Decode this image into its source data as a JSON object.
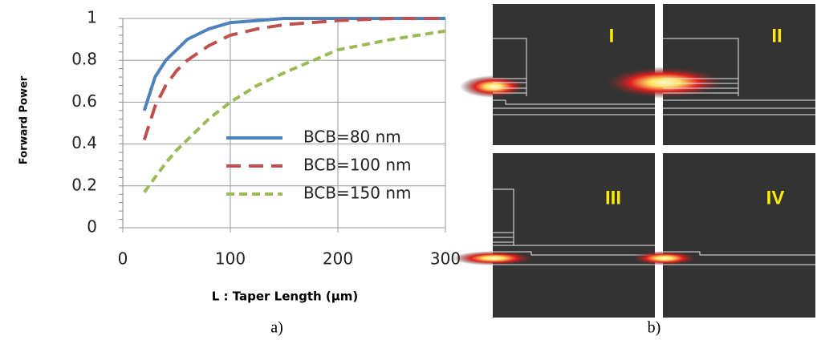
{
  "chart_data": {
    "type": "line",
    "y_label": "Forward Power",
    "x_label": "L : Taper Length (µm)",
    "x": [
      20,
      30,
      40,
      50,
      60,
      80,
      100,
      125,
      150,
      200,
      250,
      300
    ],
    "series": [
      {
        "name": "BCB=80 nm",
        "color": "#4f81bd",
        "dash": "none",
        "values": [
          0.56,
          0.72,
          0.8,
          0.85,
          0.9,
          0.95,
          0.98,
          0.99,
          1,
          1,
          1,
          1
        ]
      },
      {
        "name": "BCB=100 nm",
        "color": "#c0504d",
        "dash": "18 10",
        "values": [
          0.42,
          0.58,
          0.68,
          0.75,
          0.8,
          0.87,
          0.92,
          0.95,
          0.97,
          0.99,
          1,
          1
        ]
      },
      {
        "name": "BCB=150 nm",
        "color": "#9bbb59",
        "dash": "10 6",
        "values": [
          0.17,
          0.24,
          0.31,
          0.37,
          0.42,
          0.52,
          0.6,
          0.68,
          0.74,
          0.85,
          0.9,
          0.94
        ]
      }
    ],
    "xlim": [
      0,
      300
    ],
    "xticks": [
      0,
      100,
      200,
      300
    ],
    "ylim": [
      0,
      1
    ],
    "yticks": [
      0,
      0.2,
      0.4,
      0.6,
      0.8,
      1
    ],
    "grid": true
  },
  "panels": [
    {
      "label": "I"
    },
    {
      "label": "II"
    },
    {
      "label": "III"
    },
    {
      "label": "IV"
    }
  ],
  "captions": [
    "a)",
    "b)"
  ]
}
